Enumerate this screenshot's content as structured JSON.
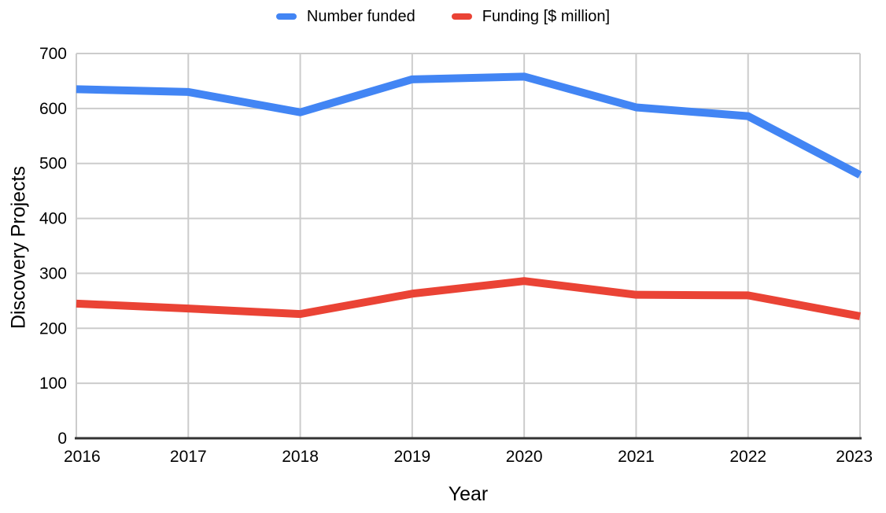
{
  "chart_data": {
    "type": "line",
    "title": "",
    "categories": [
      "2016",
      "2017",
      "2018",
      "2019",
      "2020",
      "2021",
      "2022",
      "2023"
    ],
    "series": [
      {
        "name": "Number funded",
        "color": "#4285f4",
        "values": [
          635,
          630,
          593,
          653,
          658,
          602,
          586,
          479
        ]
      },
      {
        "name": "Funding [$ million]",
        "color": "#ea4335",
        "values": [
          245,
          236,
          226,
          263,
          286,
          261,
          260,
          222
        ]
      }
    ],
    "xlabel": "Year",
    "ylabel": "Discovery Projects",
    "ylim": [
      0,
      700
    ],
    "ytick_step": 100,
    "yticks": [
      "0",
      "100",
      "200",
      "300",
      "400",
      "500",
      "600",
      "700"
    ],
    "grid": true,
    "legend_position": "top"
  },
  "style": {
    "gridline_color": "#cccccc",
    "axis_line_color": "#333333",
    "tick_label_color": "#000000",
    "line_width": 10,
    "tick_font_size": 21
  }
}
